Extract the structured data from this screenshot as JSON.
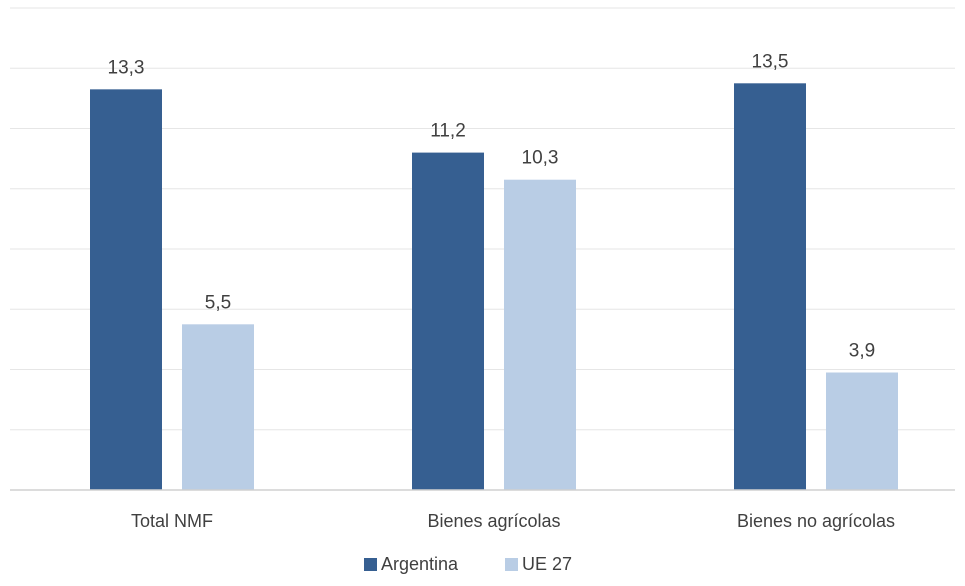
{
  "chart_data": {
    "type": "bar",
    "title": "",
    "xlabel": "",
    "ylabel": "",
    "categories": [
      "Total NMF",
      "Bienes agrícolas",
      "Bienes no agrícolas"
    ],
    "series": [
      {
        "name": "Argentina",
        "values": [
          13.3,
          11.2,
          13.5
        ],
        "value_labels": [
          "13,3",
          "11,2",
          "13,5"
        ],
        "color": "#365f91"
      },
      {
        "name": "UE 27",
        "values": [
          5.5,
          10.3,
          3.9
        ],
        "value_labels": [
          "5,5",
          "10,3",
          "3,9"
        ],
        "color": "#b9cde5"
      }
    ],
    "ylim": [
      0,
      16
    ],
    "grid": true,
    "legend": "bottom-center",
    "y_axis_labels_shown": false
  }
}
